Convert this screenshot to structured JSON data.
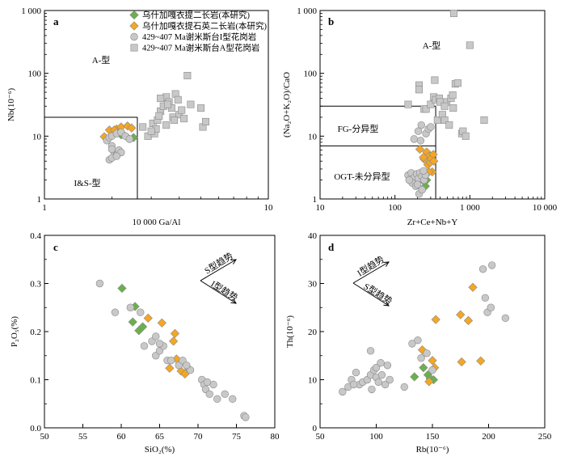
{
  "colors": {
    "this_study_granite": "#6ab04c",
    "this_study_quartz": "#f5a623",
    "i_type": "#c8c8c8",
    "a_type": "#c8c8c8",
    "marker_stroke": "#8a8a8a",
    "axis": "#000000"
  },
  "legend": [
    {
      "key": "green",
      "marker": "diamond",
      "label": "乌什加嘎衣提二长岩(本研究)"
    },
    {
      "key": "orange",
      "marker": "diamond",
      "label": "乌什加嘎衣提石英二长岩(本研究)"
    },
    {
      "key": "itype",
      "marker": "circle",
      "label": "429~407 Ma谢米斯台I型花岗岩"
    },
    {
      "key": "atype",
      "marker": "square",
      "label": "429~407 Ma谢米斯台A型花岗岩"
    }
  ],
  "chart_data": [
    {
      "type": "scatter",
      "panel": "a",
      "xlabel": "10 000 Ga/Al",
      "ylabel": "Nb(10⁻⁶)",
      "xscale": "log",
      "yscale": "log",
      "xlim": [
        1,
        10
      ],
      "ylim": [
        1,
        1000
      ],
      "xticks": [
        "1",
        "10"
      ],
      "yticks": [
        "1",
        "10",
        "100",
        "1 000"
      ],
      "field_labels": [
        "A-型",
        "I&S-型"
      ],
      "boundaries": [
        [
          [
            1,
            20
          ],
          [
            2.6,
            20
          ]
        ],
        [
          [
            2.6,
            1
          ],
          [
            2.6,
            20
          ]
        ]
      ],
      "series": [
        {
          "key": "green",
          "points": [
            [
              2.05,
              11
            ],
            [
              2.2,
              11.5
            ],
            [
              2.35,
              9.5
            ],
            [
              2.5,
              9.5
            ],
            [
              2.2,
              10.5
            ]
          ]
        },
        {
          "key": "orange",
          "points": [
            [
              1.85,
              9.8
            ],
            [
              1.95,
              12.5
            ],
            [
              2.1,
              13
            ],
            [
              2.2,
              14
            ],
            [
              2.35,
              14.5
            ],
            [
              2.45,
              13.5
            ],
            [
              2.05,
              12.5
            ]
          ]
        },
        {
          "key": "itype",
          "points": [
            [
              1.9,
              8.5
            ],
            [
              1.95,
              9.5
            ],
            [
              2.0,
              10
            ],
            [
              2.1,
              11
            ],
            [
              2.2,
              11.5
            ],
            [
              2.3,
              10
            ],
            [
              2.4,
              9
            ],
            [
              2.0,
              7
            ],
            [
              2.05,
              5.5
            ],
            [
              2.1,
              5
            ],
            [
              1.95,
              4.2
            ],
            [
              2.0,
              4.5
            ],
            [
              2.15,
              6
            ],
            [
              2.2,
              5.5
            ],
            [
              2.1,
              4.8
            ],
            [
              2.0,
              6.2
            ]
          ]
        },
        {
          "key": "atype",
          "points": [
            [
              2.75,
              14
            ],
            [
              2.9,
              10
            ],
            [
              3.05,
              16
            ],
            [
              3.1,
              11
            ],
            [
              3.15,
              13
            ],
            [
              3.2,
              18
            ],
            [
              3.3,
              25
            ],
            [
              3.4,
              30
            ],
            [
              3.5,
              42
            ],
            [
              3.6,
              35
            ],
            [
              3.7,
              28
            ],
            [
              3.75,
              20
            ],
            [
              3.85,
              47
            ],
            [
              4.0,
              22
            ],
            [
              4.2,
              19
            ],
            [
              4.35,
              92
            ],
            [
              4.5,
              32
            ],
            [
              5.0,
              28
            ],
            [
              5.1,
              14
            ],
            [
              5.25,
              17
            ],
            [
              3.3,
              40
            ],
            [
              3.55,
              32
            ],
            [
              3.95,
              38
            ],
            [
              4.1,
              26
            ],
            [
              3.25,
              21
            ],
            [
              3.5,
              15
            ],
            [
              3.0,
              12
            ],
            [
              3.8,
              18
            ]
          ]
        }
      ]
    },
    {
      "type": "scatter",
      "panel": "b",
      "xlabel": "Zr+Ce+Nb+Y",
      "ylabel": "(Na₂O+K₂O)/CaO",
      "xscale": "log",
      "yscale": "log",
      "xlim": [
        10,
        10000
      ],
      "ylim": [
        1,
        1000
      ],
      "xticks": [
        "10",
        "100",
        "1 000",
        "10 000"
      ],
      "yticks": [
        "1",
        "10",
        "100",
        "1 000"
      ],
      "field_labels": [
        "A-型",
        "FG-分异型",
        "OGT-未分异型"
      ],
      "boundaries": [
        [
          [
            10,
            30
          ],
          [
            350,
            30
          ]
        ],
        [
          [
            10,
            7
          ],
          [
            350,
            7
          ]
        ],
        [
          [
            350,
            1
          ],
          [
            350,
            30
          ]
        ]
      ],
      "series": [
        {
          "key": "green",
          "points": [
            [
              220,
              2.4
            ],
            [
              235,
              2.1
            ],
            [
              245,
              1.9
            ],
            [
              255,
              1.6
            ],
            [
              265,
              2.0
            ],
            [
              230,
              2.6
            ]
          ]
        },
        {
          "key": "orange",
          "points": [
            [
              215,
              6.2
            ],
            [
              245,
              4.3
            ],
            [
              265,
              5.6
            ],
            [
              275,
              3.5
            ],
            [
              285,
              4.8
            ],
            [
              295,
              3.8
            ],
            [
              305,
              4.4
            ],
            [
              315,
              2.7
            ],
            [
              325,
              5.1
            ],
            [
              285,
              2.7
            ],
            [
              330,
              4.0
            ],
            [
              240,
              4.6
            ]
          ]
        },
        {
          "key": "itype",
          "points": [
            [
              150,
              2.4
            ],
            [
              165,
              2.6
            ],
            [
              180,
              2.2
            ],
            [
              195,
              2.5
            ],
            [
              205,
              2.1
            ],
            [
              215,
              2.6
            ],
            [
              230,
              2.3
            ],
            [
              245,
              2.0
            ],
            [
              255,
              2.4
            ],
            [
              170,
              1.8
            ],
            [
              190,
              1.6
            ],
            [
              210,
              1.2
            ],
            [
              230,
              1.4
            ],
            [
              180,
              9.0
            ],
            [
              205,
              12
            ],
            [
              225,
              15
            ],
            [
              260,
              11
            ],
            [
              280,
              13
            ],
            [
              300,
              14
            ],
            [
              220,
              8.5
            ],
            [
              200,
              1.7
            ],
            [
              240,
              2.8
            ],
            [
              155,
              2.0
            ]
          ]
        },
        {
          "key": "atype",
          "points": [
            [
              150,
              32
            ],
            [
              210,
              65
            ],
            [
              210,
              55
            ],
            [
              245,
              27
            ],
            [
              260,
              27
            ],
            [
              300,
              32
            ],
            [
              330,
              42
            ],
            [
              350,
              38
            ],
            [
              370,
              18
            ],
            [
              390,
              40
            ],
            [
              430,
              22
            ],
            [
              460,
              18
            ],
            [
              490,
              35
            ],
            [
              530,
              15
            ],
            [
              560,
              40
            ],
            [
              590,
              45
            ],
            [
              600,
              28
            ],
            [
              640,
              68
            ],
            [
              690,
              70
            ],
            [
              780,
              11
            ],
            [
              810,
              12
            ],
            [
              880,
              10
            ],
            [
              1000,
              280
            ],
            [
              1550,
              18
            ],
            [
              610,
              900
            ],
            [
              340,
              78
            ],
            [
              400,
              35
            ],
            [
              460,
              30
            ]
          ]
        }
      ]
    },
    {
      "type": "scatter",
      "panel": "c",
      "xlabel": "SiO₂(%)",
      "ylabel": "P₂O₅(%)",
      "xlim": [
        50,
        80
      ],
      "ylim": [
        0,
        0.4
      ],
      "xticks": [
        "50",
        "55",
        "60",
        "65",
        "70",
        "75",
        "80"
      ],
      "yticks": [
        "0.0",
        "0.1",
        "0.2",
        "0.3",
        "0.4"
      ],
      "annotations": [
        "S型趋势",
        "I型趋势"
      ],
      "series": [
        {
          "key": "green",
          "points": [
            [
              60.1,
              0.29
            ],
            [
              61.8,
              0.252
            ],
            [
              61.5,
              0.22
            ],
            [
              62.3,
              0.202
            ],
            [
              62.8,
              0.21
            ]
          ]
        },
        {
          "key": "orange",
          "points": [
            [
              63.5,
              0.228
            ],
            [
              65.3,
              0.218
            ],
            [
              66.3,
              0.124
            ],
            [
              67.0,
              0.196
            ],
            [
              66.8,
              0.18
            ],
            [
              67.2,
              0.143
            ],
            [
              67.8,
              0.118
            ],
            [
              68.3,
              0.112
            ],
            [
              68.8,
              0.123
            ]
          ]
        },
        {
          "key": "itype",
          "points": [
            [
              57.2,
              0.3
            ],
            [
              59.2,
              0.24
            ],
            [
              61.2,
              0.25
            ],
            [
              62.5,
              0.24
            ],
            [
              63.0,
              0.17
            ],
            [
              64.0,
              0.18
            ],
            [
              64.5,
              0.15
            ],
            [
              65.0,
              0.16
            ],
            [
              65.5,
              0.17
            ],
            [
              66.0,
              0.14
            ],
            [
              66.5,
              0.14
            ],
            [
              67.5,
              0.13
            ],
            [
              68.0,
              0.14
            ],
            [
              69.0,
              0.12
            ],
            [
              70.5,
              0.1
            ],
            [
              70.8,
              0.09
            ],
            [
              71.0,
              0.08
            ],
            [
              71.5,
              0.07
            ],
            [
              72.0,
              0.09
            ],
            [
              72.5,
              0.06
            ],
            [
              73.5,
              0.07
            ],
            [
              74.5,
              0.06
            ],
            [
              76.0,
              0.025
            ],
            [
              76.2,
              0.022
            ],
            [
              64.5,
              0.19
            ],
            [
              65.0,
              0.175
            ],
            [
              68.5,
              0.13
            ],
            [
              71.2,
              0.095
            ]
          ]
        }
      ]
    },
    {
      "type": "scatter",
      "panel": "d",
      "xlabel": "Rb(10⁻⁶)",
      "ylabel": "Th(10⁻⁶)",
      "xlim": [
        50,
        250
      ],
      "ylim": [
        0,
        40
      ],
      "xticks": [
        "50",
        "100",
        "150",
        "200",
        "250"
      ],
      "yticks": [
        "0",
        "10",
        "20",
        "30",
        "40"
      ],
      "annotations": [
        "I型趋势",
        "S型趋势"
      ],
      "series": [
        {
          "key": "green",
          "points": [
            [
              134,
              10.6
            ],
            [
              142,
              12.5
            ],
            [
              146,
              11.0
            ],
            [
              148,
              10.2
            ],
            [
              151,
              10.0
            ]
          ]
        },
        {
          "key": "orange",
          "points": [
            [
              141,
              16.2
            ],
            [
              147,
              9.6
            ],
            [
              150,
              14.0
            ],
            [
              152,
              12.5
            ],
            [
              153,
              22.5
            ],
            [
              175,
              23.5
            ],
            [
              176,
              13.7
            ],
            [
              182,
              22.3
            ],
            [
              186,
              29.2
            ],
            [
              193,
              13.9
            ]
          ]
        },
        {
          "key": "itype",
          "points": [
            [
              70,
              7.5
            ],
            [
              75,
              8.5
            ],
            [
              78,
              10
            ],
            [
              82,
              11.5
            ],
            [
              85,
              9
            ],
            [
              88,
              9.5
            ],
            [
              92,
              10
            ],
            [
              95,
              11
            ],
            [
              96,
              8
            ],
            [
              98,
              12
            ],
            [
              100,
              10.5
            ],
            [
              102,
              9.5
            ],
            [
              105,
              11
            ],
            [
              108,
              9
            ],
            [
              110,
              13
            ],
            [
              112,
              10
            ],
            [
              95,
              16
            ],
            [
              125,
              8.5
            ],
            [
              132,
              17.5
            ],
            [
              137,
              18.2
            ],
            [
              140,
              14.5
            ],
            [
              145,
              15.5
            ],
            [
              150,
              12
            ],
            [
              195,
              33
            ],
            [
              197,
              27
            ],
            [
              199,
              24
            ],
            [
              202,
              25
            ],
            [
              203,
              33.8
            ],
            [
              215,
              22.8
            ],
            [
              80,
              9
            ],
            [
              100,
              12.5
            ],
            [
              104,
              13.5
            ]
          ]
        }
      ]
    }
  ]
}
